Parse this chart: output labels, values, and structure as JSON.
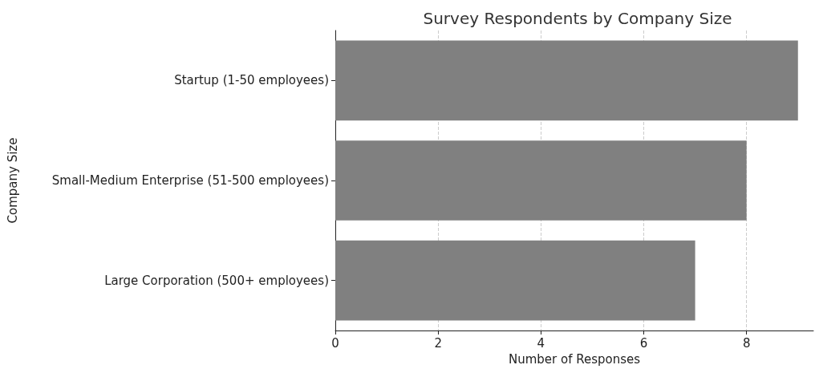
{
  "chart_data": {
    "type": "bar",
    "orientation": "horizontal",
    "title": "Survey Respondents by Company Size",
    "xlabel": "Number of Responses",
    "ylabel": "Company Size",
    "categories": [
      "Startup (1-50 employees)",
      "Small-Medium Enterprise (51-500 employees)",
      "Large Corporation (500+ employees)"
    ],
    "values": [
      9,
      8,
      7
    ],
    "color": "#808080",
    "xlim": [
      0,
      9.3
    ],
    "xticks": [
      0,
      2,
      4,
      6,
      8
    ],
    "grid": "x"
  }
}
